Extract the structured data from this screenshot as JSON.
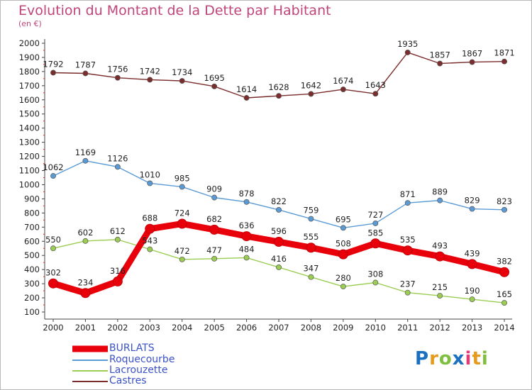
{
  "chart_data": {
    "type": "line",
    "title": "Evolution du Montant de la Dette par Habitant",
    "subtitle": "(en €)",
    "x": [
      "2000",
      "2001",
      "2002",
      "2003",
      "2004",
      "2005",
      "2006",
      "2007",
      "2008",
      "2009",
      "2010",
      "2011",
      "2012",
      "2013",
      "2014"
    ],
    "yticks": [
      100,
      200,
      300,
      400,
      500,
      600,
      700,
      800,
      900,
      1000,
      1100,
      1200,
      1300,
      1400,
      1500,
      1600,
      1700,
      1800,
      1900,
      2000
    ],
    "ylim": [
      100,
      2000
    ],
    "grid": false,
    "legend_position": "bottom-left",
    "series": [
      {
        "name": "BURLATS",
        "color": "#e8000b",
        "values": [
          302,
          234,
          316,
          688,
          724,
          682,
          636,
          596,
          555,
          508,
          585,
          535,
          493,
          439,
          382
        ]
      },
      {
        "name": "Roquecourbe",
        "color": "#5b9bd5",
        "values": [
          1062,
          1169,
          1126,
          1010,
          985,
          909,
          878,
          822,
          759,
          695,
          727,
          871,
          889,
          829,
          823
        ]
      },
      {
        "name": "Lacrouzette",
        "color": "#9acd52",
        "values": [
          550,
          602,
          612,
          543,
          472,
          477,
          484,
          416,
          347,
          280,
          308,
          237,
          215,
          190,
          165
        ]
      },
      {
        "name": "Castres",
        "color": "#7b2c2c",
        "values": [
          1792,
          1787,
          1756,
          1742,
          1734,
          1695,
          1614,
          1628,
          1642,
          1674,
          1643,
          1935,
          1857,
          1867,
          1871
        ]
      }
    ]
  },
  "watermark": {
    "letters": [
      "P",
      "r",
      "o",
      "x",
      "i",
      "t",
      "i"
    ],
    "colors": [
      "#1a6fc1",
      "#e59b1e",
      "#7fbf3f",
      "#1a6fc1",
      "#e23b7a",
      "#e59b1e",
      "#7fbf3f"
    ]
  }
}
